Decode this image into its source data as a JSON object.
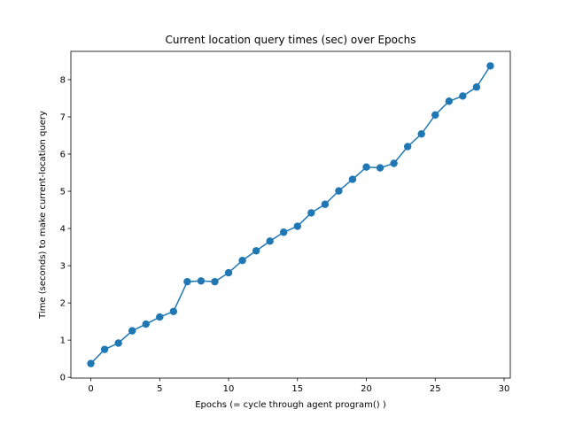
{
  "chart_data": {
    "type": "line",
    "title": "Current location query times (sec) over Epochs",
    "xlabel": "Epochs (= cycle through agent program() )",
    "ylabel": "Time (seconds) to make current-location query",
    "xlim": [
      -1.45,
      30.45
    ],
    "ylim": [
      -0.02,
      8.76
    ],
    "xticks": [
      0,
      5,
      10,
      15,
      20,
      25,
      30
    ],
    "yticks": [
      0,
      1,
      2,
      3,
      4,
      5,
      6,
      7,
      8
    ],
    "grid": false,
    "legend": "none",
    "series": [
      {
        "color": "#1f77b4",
        "marker": "circle",
        "x": [
          0,
          1,
          2,
          3,
          4,
          5,
          6,
          7,
          8,
          9,
          10,
          11,
          12,
          13,
          14,
          15,
          16,
          17,
          18,
          19,
          20,
          21,
          22,
          23,
          24,
          25,
          26,
          27,
          28,
          29
        ],
        "y": [
          0.37,
          0.75,
          0.92,
          1.25,
          1.43,
          1.62,
          1.77,
          2.57,
          2.59,
          2.57,
          2.81,
          3.14,
          3.4,
          3.66,
          3.9,
          4.06,
          4.42,
          4.65,
          5.01,
          5.32,
          5.65,
          5.63,
          5.75,
          6.2,
          6.54,
          7.05,
          7.42,
          7.56,
          7.8,
          8.37
        ]
      }
    ]
  }
}
